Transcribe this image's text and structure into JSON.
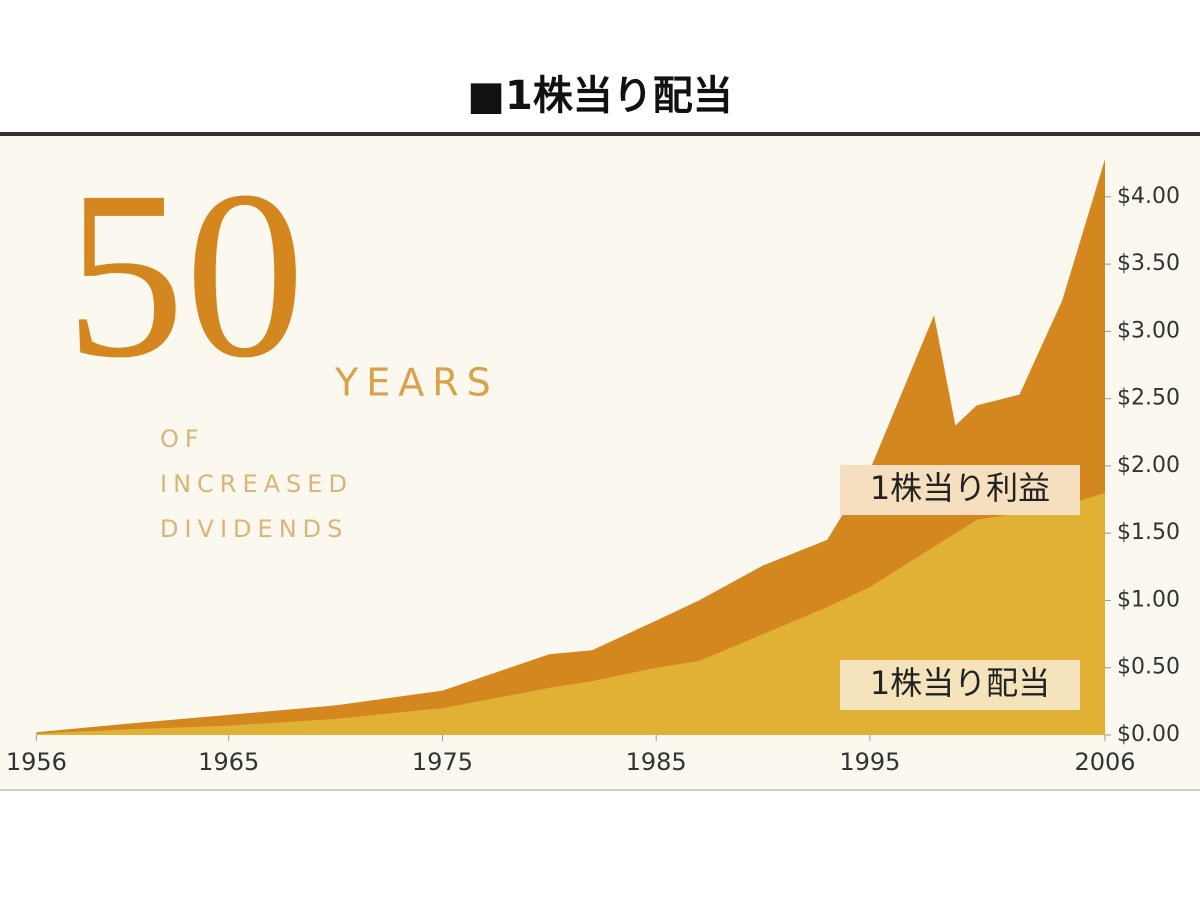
{
  "chart_data": {
    "type": "area",
    "title": "■1株当り配当",
    "x": [
      1956,
      1960,
      1965,
      1970,
      1975,
      1980,
      1982,
      1985,
      1987,
      1990,
      1993,
      1995,
      1998,
      1999,
      2000,
      2002,
      2004,
      2006
    ],
    "series": [
      {
        "name": "1株当り利益",
        "color": "#d4861f",
        "values": [
          0.02,
          0.08,
          0.15,
          0.22,
          0.33,
          0.6,
          0.63,
          0.85,
          1.0,
          1.26,
          1.45,
          1.97,
          3.12,
          2.3,
          2.45,
          2.53,
          3.23,
          4.28
        ]
      },
      {
        "name": "1株当り配当",
        "color": "#e0b134",
        "values": [
          0.01,
          0.04,
          0.07,
          0.12,
          0.2,
          0.35,
          0.4,
          0.5,
          0.55,
          0.75,
          0.95,
          1.1,
          1.4,
          1.5,
          1.6,
          1.65,
          1.7,
          1.8
        ]
      }
    ],
    "xlim": [
      1955,
      2006
    ],
    "xticks": [
      1956,
      1965,
      1975,
      1985,
      1995,
      2006
    ],
    "ylim": [
      0,
      4.4
    ],
    "yticks": [
      {
        "value": 0,
        "label": "$0.00"
      },
      {
        "value": 0.5,
        "label": "$0.50"
      },
      {
        "value": 1,
        "label": "$1.00"
      },
      {
        "value": 1.5,
        "label": "$1.50"
      },
      {
        "value": 2,
        "label": "$2.00"
      },
      {
        "value": 2.5,
        "label": "$2.50"
      },
      {
        "value": 3,
        "label": "$3.00"
      },
      {
        "value": 3.5,
        "label": "$3.50"
      },
      {
        "value": 4,
        "label": "$4.00"
      }
    ],
    "annotations": {
      "big": "50",
      "years": "YEARS",
      "of": "OF",
      "increased": "INCREASED",
      "dividends": "DIVIDENDS"
    }
  }
}
